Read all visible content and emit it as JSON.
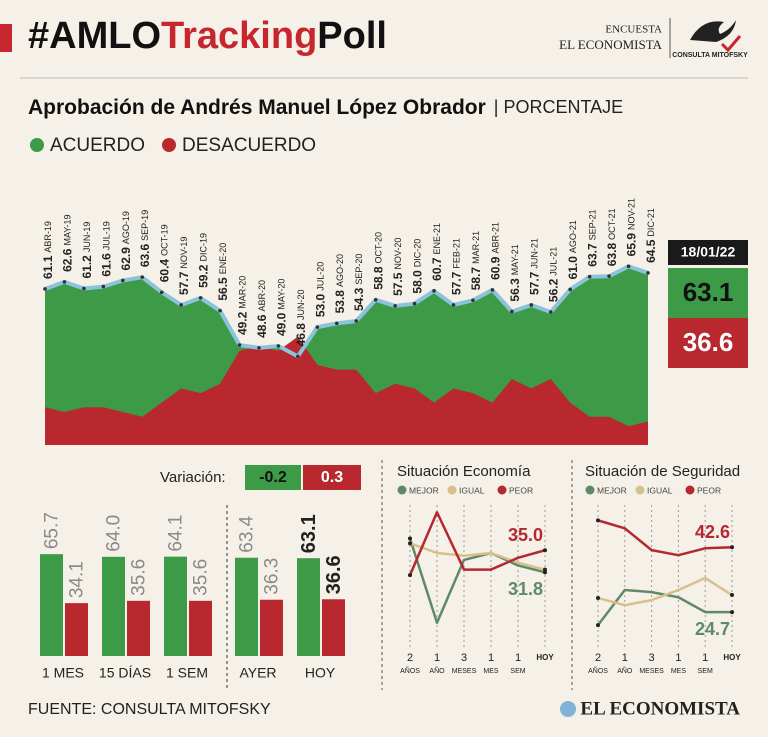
{
  "header": {
    "title_parts": [
      "#AMLO",
      "Tracking",
      "Poll"
    ],
    "logo_top": "ENCUESTA",
    "logo_name": "EL ECONOMISTA",
    "logo_partner": "CONSULTA MITOFSKY",
    "subtitle": "Aprobación de Andrés Manuel López Obrador",
    "unit": "| PORCENTAJE"
  },
  "chart_data": [
    {
      "type": "area",
      "categories": [
        "ABR-19",
        "MAY-19",
        "JUN-19",
        "JUL-19",
        "AGO-19",
        "SEP-19",
        "OCT-19",
        "NOV-19",
        "DIC-19",
        "ENE-20",
        "MAR-20",
        "ABR-20",
        "MAY-20",
        "JUN-20",
        "JUL-20",
        "AGO-20",
        "SEP-20",
        "OCT-20",
        "NOV-20",
        "DIC-20",
        "ENE-21",
        "FEB-21",
        "MAR-21",
        "ABR-21",
        "MAY-21",
        "JUN-21",
        "JUL-21",
        "AGO-21",
        "SEP-21",
        "OCT-21",
        "NOV-21",
        "DIC-21"
      ],
      "series": [
        {
          "name": "ACUERDO",
          "color": "#3d9b48",
          "values": [
            61.1,
            62.6,
            61.2,
            61.6,
            62.9,
            63.6,
            60.4,
            57.7,
            59.2,
            56.5,
            49.2,
            48.6,
            49.0,
            46.8,
            53.0,
            53.8,
            54.3,
            58.8,
            57.5,
            58.0,
            60.7,
            57.7,
            58.7,
            60.9,
            56.3,
            57.7,
            56.2,
            61.0,
            63.7,
            63.8,
            65.9,
            64.5
          ],
          "value_labels": [
            "61.1",
            "62.6",
            "61.2",
            "61.6",
            "62.9",
            "63.6",
            "60.4",
            "57.7",
            "59.2",
            "56.5",
            "49.2",
            "48.6",
            "49.0",
            "46.8",
            "53.0",
            "53.8",
            "54.3",
            "58.8",
            "57.5",
            "58.0",
            "60.7",
            "57.7",
            "58.7",
            "60.9",
            "56.3",
            "57.7",
            "56.2",
            "61.0",
            "63.7",
            "63.8",
            "65.9",
            "64.5"
          ]
        },
        {
          "name": "DESACUERDO",
          "color": "#b8282e",
          "values": [
            36,
            35,
            36,
            36,
            35,
            34,
            37,
            40,
            39,
            41,
            48,
            49,
            48,
            51,
            45,
            44,
            44,
            39,
            41,
            40,
            37,
            40,
            39,
            37,
            42,
            40,
            42,
            37,
            34,
            34,
            32,
            33
          ]
        }
      ],
      "line_color": "#8cc3dc",
      "ylim": [
        28,
        70
      ],
      "latest": {
        "date": "18/01/22",
        "values": [
          63.1,
          36.6
        ]
      }
    },
    {
      "type": "bar",
      "categories": [
        "1 MES",
        "15 DÍAS",
        "1 SEM",
        "AYER",
        "HOY"
      ],
      "series": [
        {
          "name": "ACUERDO",
          "color": "#3d9b48",
          "values": [
            65.7,
            64.0,
            64.1,
            63.4,
            63.1
          ],
          "value_labels": [
            "65.7",
            "64.0",
            "64.1",
            "63.4",
            "63.1"
          ]
        },
        {
          "name": "DESACUERDO",
          "color": "#b8282e",
          "values": [
            34.1,
            35.6,
            35.6,
            36.3,
            36.6
          ],
          "value_labels": [
            "34.1",
            "35.6",
            "35.6",
            "36.3",
            "36.6"
          ]
        }
      ],
      "ylim": [
        0,
        100
      ],
      "variation": {
        "label": "Variación:",
        "values": [
          -0.2,
          0.3
        ]
      }
    },
    {
      "type": "line",
      "title": "Situación Economía",
      "categories": [
        [
          "2",
          "AÑOS"
        ],
        [
          "1",
          "AÑO"
        ],
        [
          "3",
          "MESES"
        ],
        [
          "1",
          "MES"
        ],
        [
          "1",
          "SEM"
        ],
        [
          "HOY"
        ]
      ],
      "series": [
        {
          "name": "MEJOR",
          "color": "#5f8a68",
          "values": [
            36.7,
            24.5,
            33.6,
            34.6,
            32.8,
            31.8
          ],
          "value_labels": [
            null,
            null,
            null,
            null,
            null,
            "31.8"
          ]
        },
        {
          "name": "IGUAL",
          "color": "#d8c08a",
          "values": [
            36.0,
            34.6,
            34.2,
            34.6,
            33.2,
            32.2
          ]
        },
        {
          "name": "PEOR",
          "color": "#b5282f",
          "values": [
            31.4,
            40.5,
            32.2,
            32.2,
            33.9,
            35.0
          ],
          "value_labels": [
            null,
            null,
            null,
            null,
            null,
            "35.0"
          ]
        }
      ],
      "ylim": [
        22,
        43
      ]
    },
    {
      "type": "line",
      "title": "Situación de Seguridad",
      "categories": [
        [
          "2",
          "AÑOS"
        ],
        [
          "1",
          "AÑO"
        ],
        [
          "3",
          "MESES"
        ],
        [
          "1",
          "MES"
        ],
        [
          "1",
          "SEM"
        ],
        [
          "HOY"
        ]
      ],
      "series": [
        {
          "name": "MEJOR",
          "color": "#5f8a68",
          "values": [
            21.1,
            30.8,
            30.2,
            28.8,
            24.7,
            24.7
          ],
          "value_labels": [
            null,
            null,
            null,
            null,
            null,
            "24.7"
          ]
        },
        {
          "name": "IGUAL",
          "color": "#d8c08a",
          "values": [
            28.6,
            26.6,
            28.0,
            30.8,
            34.1,
            29.4
          ]
        },
        {
          "name": "PEOR",
          "color": "#b5282f",
          "values": [
            50.0,
            47.8,
            41.8,
            40.4,
            42.3,
            42.6
          ],
          "value_labels": [
            null,
            null,
            null,
            null,
            null,
            "42.6"
          ]
        }
      ],
      "ylim": [
        17,
        57
      ]
    }
  ],
  "footer": {
    "source": "FUENTE: CONSULTA MITOFSKY",
    "brand": "EL ECONOMISTA"
  }
}
